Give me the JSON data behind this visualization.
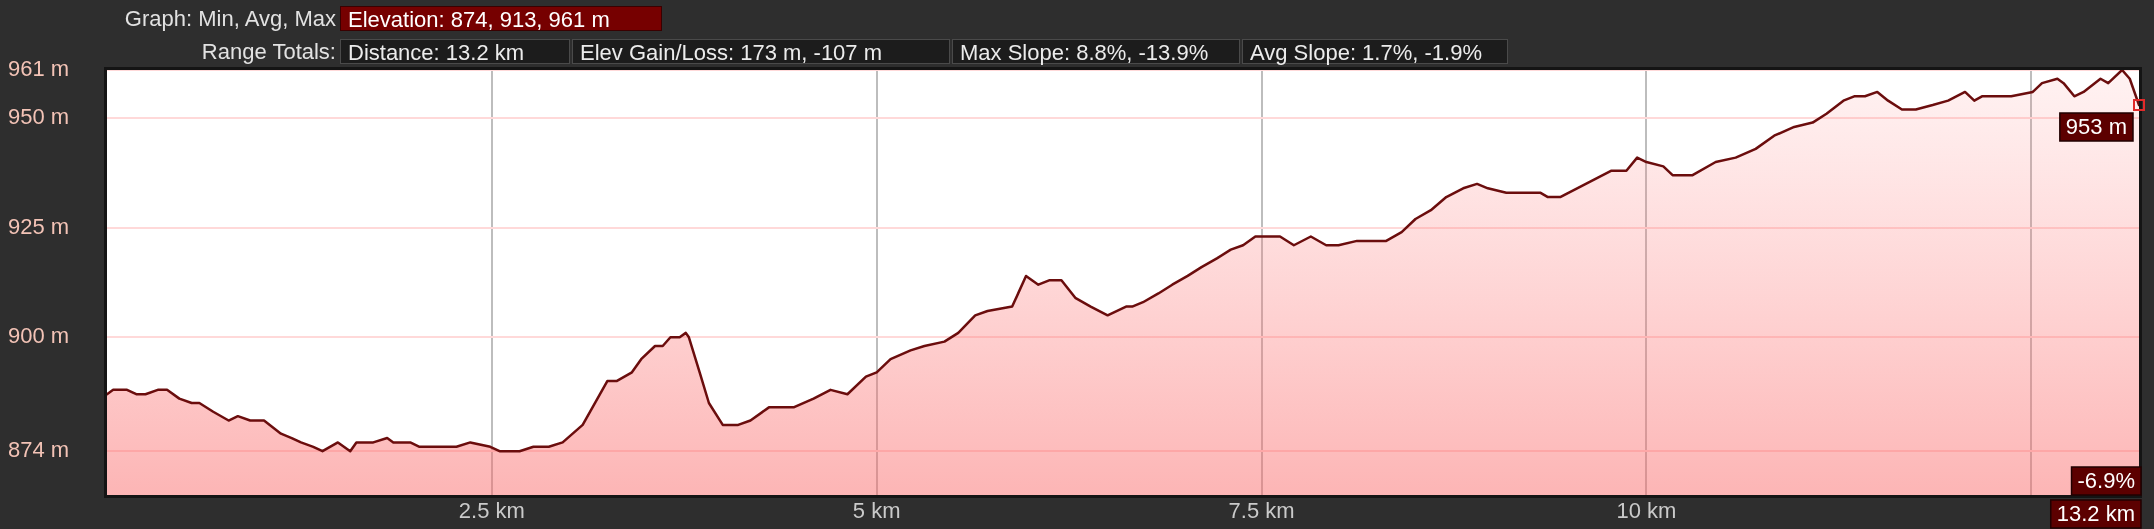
{
  "chart_data": {
    "type": "area",
    "color": "#6b0d0d",
    "x": [
      0,
      0.04,
      0.13,
      0.19,
      0.25,
      0.33,
      0.39,
      0.47,
      0.55,
      0.6,
      0.69,
      0.79,
      0.85,
      0.93,
      1.02,
      1.13,
      1.2,
      1.26,
      1.34,
      1.4,
      1.5,
      1.58,
      1.62,
      1.73,
      1.82,
      1.86,
      1.97,
      2.03,
      2.14,
      2.27,
      2.36,
      2.49,
      2.55,
      2.68,
      2.77,
      2.87,
      2.96,
      3.09,
      3.25,
      3.31,
      3.41,
      3.47,
      3.56,
      3.61,
      3.66,
      3.72,
      3.76,
      3.78,
      3.85,
      3.91,
      4.0,
      4.1,
      4.18,
      4.3,
      4.38,
      4.46,
      4.59,
      4.7,
      4.81,
      4.93,
      5.0,
      5.09,
      5.22,
      5.31,
      5.44,
      5.53,
      5.64,
      5.72,
      5.88,
      5.97,
      6.05,
      6.12,
      6.2,
      6.29,
      6.39,
      6.5,
      6.62,
      6.66,
      6.73,
      6.83,
      6.92,
      7.02,
      7.11,
      7.21,
      7.3,
      7.38,
      7.46,
      7.52,
      7.62,
      7.71,
      7.82,
      7.92,
      8.0,
      8.12,
      8.31,
      8.41,
      8.5,
      8.6,
      8.7,
      8.81,
      8.9,
      8.97,
      9.09,
      9.23,
      9.31,
      9.36,
      9.44,
      9.55,
      9.66,
      9.77,
      9.87,
      9.94,
      10.0,
      10.11,
      10.17,
      10.3,
      10.45,
      10.58,
      10.71,
      10.83,
      10.96,
      11.08,
      11.17,
      11.28,
      11.35,
      11.42,
      11.5,
      11.57,
      11.66,
      11.75,
      11.86,
      11.96,
      12.07,
      12.13,
      12.18,
      12.3,
      12.37,
      12.51,
      12.57,
      12.67,
      12.71,
      12.78,
      12.84,
      12.95,
      13.0,
      13.09,
      13.14,
      13.2
    ],
    "values": [
      887,
      888,
      888,
      887,
      887,
      888,
      888,
      886,
      885,
      885,
      883,
      881,
      882,
      881,
      881,
      878,
      877,
      876,
      875,
      874,
      876,
      874,
      876,
      876,
      877,
      876,
      876,
      875,
      875,
      875,
      876,
      875,
      874,
      874,
      875,
      875,
      876,
      880,
      890,
      890,
      892,
      895,
      898,
      898,
      900,
      900,
      901,
      900,
      892,
      885,
      880,
      880,
      881,
      884,
      884,
      884,
      886,
      888,
      887,
      891,
      892,
      895,
      897,
      898,
      899,
      901,
      905,
      906,
      907,
      914,
      912,
      913,
      913,
      909,
      907,
      905,
      907,
      907,
      908,
      910,
      912,
      914,
      916,
      918,
      920,
      921,
      923,
      923,
      923,
      921,
      923,
      921,
      921,
      922,
      922,
      924,
      927,
      929,
      932,
      934,
      935,
      934,
      933,
      933,
      933,
      932,
      932,
      934,
      936,
      938,
      938,
      941,
      940,
      939,
      937,
      937,
      940,
      941,
      943,
      946,
      948,
      949,
      951,
      954,
      955,
      955,
      956,
      954,
      952,
      952,
      953,
      954,
      956,
      954,
      955,
      955,
      955,
      956,
      958,
      959,
      958,
      955,
      956,
      959,
      958,
      961,
      959,
      953
    ],
    "xlim": [
      0,
      13.2
    ],
    "ylim": [
      864,
      961
    ],
    "xticks": [
      {
        "value": 2.5,
        "label": "2.5 km"
      },
      {
        "value": 5,
        "label": "5 km"
      },
      {
        "value": 7.5,
        "label": "7.5 km"
      },
      {
        "value": 10,
        "label": "10 km"
      },
      {
        "value": 12.5,
        "label": null
      }
    ],
    "yticks": [
      {
        "value": 874,
        "label": "874 m"
      },
      {
        "value": 900,
        "label": "900 m"
      },
      {
        "value": 925,
        "label": "925 m"
      },
      {
        "value": 950,
        "label": "950 m"
      },
      {
        "value": 961,
        "label": "961 m"
      }
    ],
    "grid": true,
    "annotations": [
      "Graph: Min, Avg, Max",
      "Elevation: 874, 913, 961 m",
      "Range Totals:",
      "Distance: 13.2 km",
      "Elev Gain/Loss: 173 m, -107 m",
      "Max Slope: 8.8%, -13.9%",
      "Avg Slope: 1.7%, -1.9%",
      {
        "text": "953 m",
        "x": 13.2,
        "y": 953
      },
      "-6.9%",
      "13.2 km"
    ]
  }
}
